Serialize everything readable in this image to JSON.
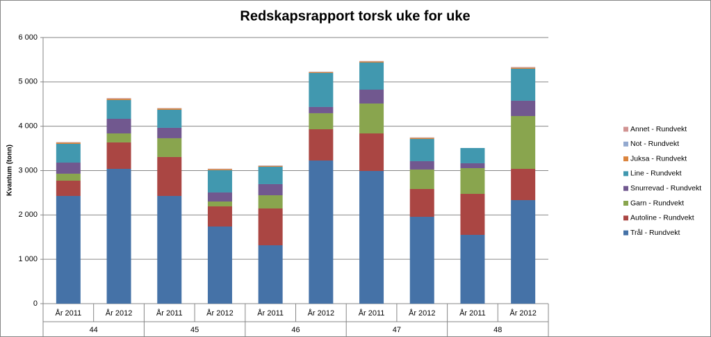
{
  "chart_data": {
    "type": "stacked_bar",
    "title": "Redskapsrapport torsk uke for uke",
    "y_label": "Kvantum (tonn)",
    "categories": [
      "År 2011",
      "År 2012",
      "År 2011",
      "År 2012",
      "År 2011",
      "År 2012",
      "År 2011",
      "År 2012",
      "År 2011",
      "År 2012"
    ],
    "groups": [
      "44",
      "45",
      "46",
      "47",
      "48"
    ],
    "series": [
      {
        "name": "Trål - Rundvekt",
        "color": "#4572a7",
        "values": [
          2428,
          3039,
          2428,
          1739,
          1316,
          3227,
          2992,
          1958,
          1551,
          2334
        ]
      },
      {
        "name": "Autoline - Rundvekt",
        "color": "#aa4643",
        "values": [
          345,
          596,
          878,
          454,
          830,
          705,
          846,
          627,
          924,
          705
        ]
      },
      {
        "name": "Garn - Rundvekt",
        "color": "#89a54e",
        "values": [
          157,
          203,
          423,
          110,
          298,
          361,
          674,
          439,
          580,
          1191
        ]
      },
      {
        "name": "Snurrevad - Rundvekt",
        "color": "#71588f",
        "values": [
          250,
          329,
          235,
          204,
          251,
          141,
          313,
          188,
          110,
          345
        ]
      },
      {
        "name": "Line - Rundvekt",
        "color": "#4198af",
        "values": [
          423,
          423,
          407,
          501,
          391,
          767,
          611,
          501,
          344,
          720
        ]
      },
      {
        "name": "Juksa - Rundvekt",
        "color": "#db843d",
        "values": [
          30,
          30,
          30,
          25,
          20,
          20,
          25,
          25,
          0,
          25
        ]
      },
      {
        "name": "Not - Rundvekt",
        "color": "#93a9cf",
        "values": [
          5,
          5,
          5,
          5,
          5,
          5,
          5,
          5,
          0,
          5
        ]
      },
      {
        "name": "Annet - Rundvekt",
        "color": "#d19392",
        "values": [
          5,
          10,
          5,
          5,
          5,
          5,
          5,
          5,
          0,
          10
        ]
      }
    ],
    "ylim": [
      0,
      6000
    ],
    "yticks": [
      0,
      {
        "value": 1000,
        "label": "1 000"
      },
      {
        "value": 2000,
        "label": "2 000"
      },
      {
        "value": 3000,
        "label": "3 000"
      },
      {
        "value": 4000,
        "label": "4 000"
      },
      {
        "value": 5000,
        "label": "5 000"
      },
      {
        "value": 6000,
        "label": "6 000"
      }
    ],
    "grid": true,
    "legend": "right"
  }
}
